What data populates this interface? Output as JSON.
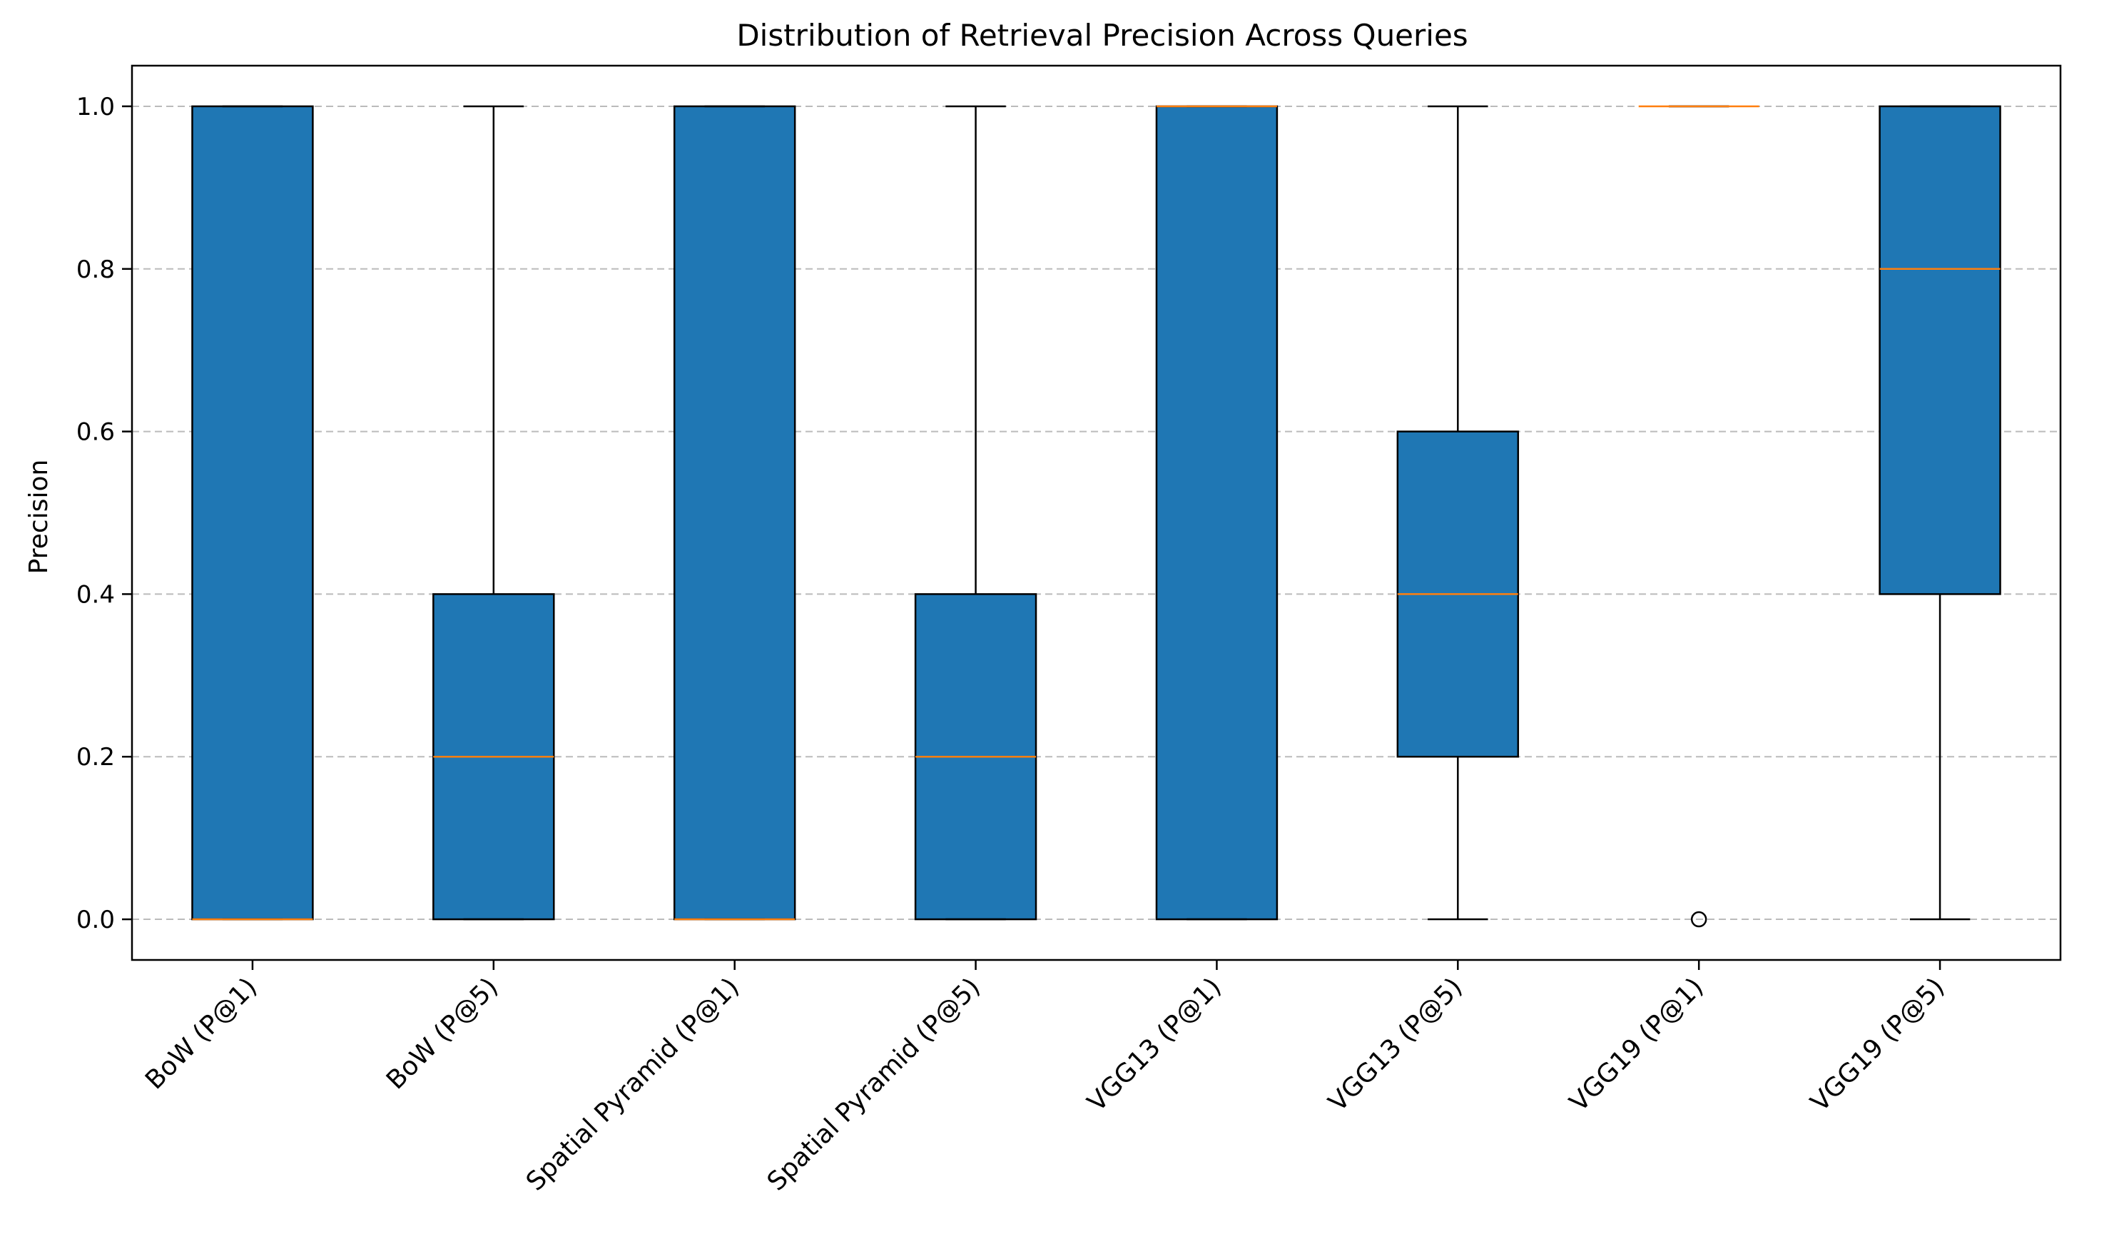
{
  "chart_data": {
    "type": "boxplot",
    "title": "Distribution of Retrieval Precision Across Queries",
    "xlabel": "",
    "ylabel": "Precision",
    "ylim": [
      -0.05,
      1.05
    ],
    "yticks": [
      0.0,
      0.2,
      0.4,
      0.6,
      0.8,
      1.0
    ],
    "ytick_labels": [
      "0.0",
      "0.2",
      "0.4",
      "0.6",
      "0.8",
      "1.0"
    ],
    "grid": "y-dashed",
    "categories": [
      "BoW (P@1)",
      "BoW (P@5)",
      "Spatial Pyramid (P@1)",
      "Spatial Pyramid (P@5)",
      "VGG13 (P@1)",
      "VGG13 (P@5)",
      "VGG19 (P@1)",
      "VGG19 (P@5)"
    ],
    "boxes": [
      {
        "whislo": 0.0,
        "q1": 0.0,
        "median": 0.0,
        "q3": 1.0,
        "whishi": 1.0,
        "fliers": []
      },
      {
        "whislo": 0.0,
        "q1": 0.0,
        "median": 0.2,
        "q3": 0.4,
        "whishi": 1.0,
        "fliers": []
      },
      {
        "whislo": 0.0,
        "q1": 0.0,
        "median": 0.0,
        "q3": 1.0,
        "whishi": 1.0,
        "fliers": []
      },
      {
        "whislo": 0.0,
        "q1": 0.0,
        "median": 0.2,
        "q3": 0.4,
        "whishi": 1.0,
        "fliers": []
      },
      {
        "whislo": 0.0,
        "q1": 0.0,
        "median": 1.0,
        "q3": 1.0,
        "whishi": 1.0,
        "fliers": []
      },
      {
        "whislo": 0.0,
        "q1": 0.2,
        "median": 0.4,
        "q3": 0.6,
        "whishi": 1.0,
        "fliers": []
      },
      {
        "whislo": 1.0,
        "q1": 1.0,
        "median": 1.0,
        "q3": 1.0,
        "whishi": 1.0,
        "fliers": [
          0.0
        ]
      },
      {
        "whislo": 0.0,
        "q1": 0.4,
        "median": 0.8,
        "q3": 1.0,
        "whishi": 1.0,
        "fliers": []
      }
    ],
    "colors": {
      "box_fill": "#1f77b4",
      "box_edge": "#000000",
      "median": "#ff7f0e",
      "grid": "#bbbbbb"
    }
  }
}
